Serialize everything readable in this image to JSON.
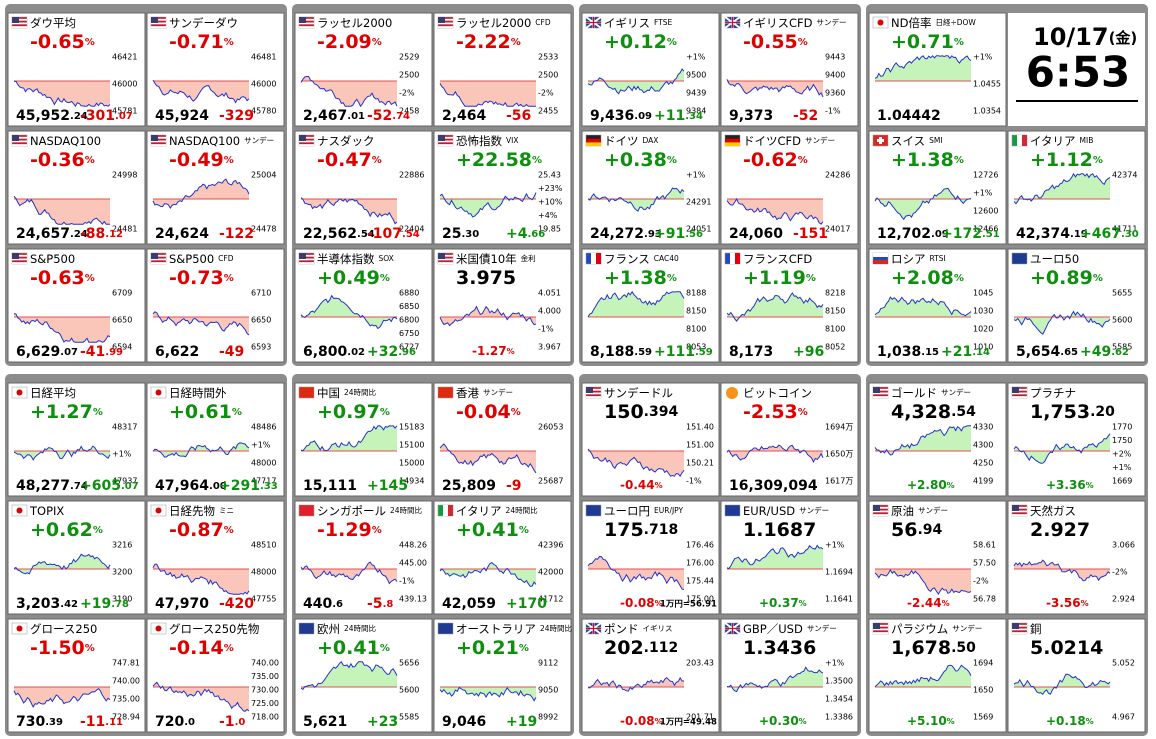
{
  "panels": [
    {
      "tiles": [
        {
          "flag": "us",
          "name": "ダウ平均",
          "pct": [
            "-0.65",
            "%"
          ],
          "price": [
            "45,952",
            ".24"
          ],
          "chg": [
            "-301",
            ".07"
          ],
          "scale": [
            "46421",
            "46000",
            "45781"
          ]
        },
        {
          "flag": "us",
          "name": "サンデーダウ",
          "pct": [
            "-0.71",
            "%"
          ],
          "price": [
            "45,924"
          ],
          "chg": [
            "-329"
          ],
          "scale": [
            "46481",
            "46000",
            "45780"
          ]
        },
        {
          "flag": "us",
          "name": "NASDAQ100",
          "pct": [
            "-0.36",
            "%"
          ],
          "price": [
            "24,657",
            ".24"
          ],
          "chg": [
            "-88",
            ".12"
          ],
          "scale": [
            "24998",
            "24481"
          ]
        },
        {
          "flag": "us",
          "name": "NASDAQ100",
          "sub": "サンデー",
          "pct": [
            "-0.49",
            "%"
          ],
          "price": [
            "24,624"
          ],
          "chg": [
            "-122"
          ],
          "scale": [
            "25004",
            "24478"
          ]
        },
        {
          "flag": "us",
          "name": "S&P500",
          "pct": [
            "-0.63",
            "%"
          ],
          "price": [
            "6,629",
            ".07"
          ],
          "chg": [
            "-41",
            ".99"
          ],
          "scale": [
            "6709",
            "6650",
            "6594"
          ]
        },
        {
          "flag": "us",
          "name": "S&P500",
          "sub": "CFD",
          "pct": [
            "-0.73",
            "%"
          ],
          "price": [
            "6,622"
          ],
          "chg": [
            "-49"
          ],
          "scale": [
            "6710",
            "6650",
            "6593"
          ]
        }
      ]
    },
    {
      "tiles": [
        {
          "flag": "us",
          "name": "ラッセル2000",
          "pct": [
            "-2.09",
            "%"
          ],
          "price": [
            "2,467",
            ".01"
          ],
          "chg": [
            "-52",
            ".74"
          ],
          "scale": [
            "2529",
            "2500",
            "-2%",
            "2458"
          ]
        },
        {
          "flag": "us",
          "name": "ラッセル2000",
          "sub": "CFD",
          "pct": [
            "-2.22",
            "%"
          ],
          "price": [
            "2,464"
          ],
          "chg": [
            "-56"
          ],
          "scale": [
            "2533",
            "2500",
            "-2%",
            "2455"
          ]
        },
        {
          "flag": "us",
          "name": "ナスダック",
          "pct": [
            "-0.47",
            "%"
          ],
          "price": [
            "22,562",
            ".54"
          ],
          "chg": [
            "-107",
            ".54"
          ],
          "scale": [
            "22886",
            "22404"
          ]
        },
        {
          "flag": "us",
          "name": "恐怖指数",
          "sub": "VIX",
          "pct": [
            "+22.58",
            "%"
          ],
          "price": [
            "25",
            ".30"
          ],
          "chg": [
            "+4",
            ".66"
          ],
          "scale": [
            "25.43",
            "+23%",
            "+10%",
            "+4%",
            "19.85"
          ]
        },
        {
          "flag": "us",
          "name": "半導体指数",
          "sub": "SOX",
          "pct": [
            "+0.49",
            "%"
          ],
          "price": [
            "6,800",
            ".02"
          ],
          "chg": [
            "+32",
            ".96"
          ],
          "scale": [
            "6880",
            "6850",
            "6800",
            "6750",
            "6727"
          ]
        },
        {
          "flag": "us",
          "name": "米国債10年",
          "sub": "金利",
          "layout": "fx",
          "pct": [
            "-1.27",
            "%"
          ],
          "price": [
            "3.975"
          ],
          "scale": [
            "4.051",
            "4.000",
            "-1%",
            "3.967"
          ]
        }
      ]
    },
    {
      "tiles": [
        {
          "flag": "gb",
          "name": "イギリス",
          "sub": "FTSE",
          "pct": [
            "+0.12",
            "%"
          ],
          "price": [
            "9,436",
            ".09"
          ],
          "chg": [
            "+11",
            ".34"
          ],
          "scale": [
            "+1%",
            "9500",
            "9439",
            "9384"
          ]
        },
        {
          "flag": "gb",
          "name": "イギリスCFD",
          "sub": "サンデー",
          "pct": [
            "-0.55",
            "%"
          ],
          "price": [
            "9,373"
          ],
          "chg": [
            "-52"
          ],
          "scale": [
            "9443",
            "9400",
            "9360",
            "-1%"
          ]
        },
        {
          "flag": "de",
          "name": "ドイツ",
          "sub": "DAX",
          "pct": [
            "+0.38",
            "%"
          ],
          "price": [
            "24,272",
            ".93"
          ],
          "chg": [
            "+91",
            ".56"
          ],
          "scale": [
            "+1%",
            "24291",
            "24051"
          ]
        },
        {
          "flag": "de",
          "name": "ドイツCFD",
          "sub": "サンデー",
          "pct": [
            "-0.62",
            "%"
          ],
          "price": [
            "24,060"
          ],
          "chg": [
            "-151"
          ],
          "scale": [
            "24286",
            "24017"
          ]
        },
        {
          "flag": "fr",
          "name": "フランス",
          "sub": "CAC40",
          "pct": [
            "+1.38",
            "%"
          ],
          "price": [
            "8,188",
            ".59"
          ],
          "chg": [
            "+111",
            ".59"
          ],
          "scale": [
            "8188",
            "8150",
            "8100",
            "8053"
          ]
        },
        {
          "flag": "fr",
          "name": "フランスCFD",
          "pct": [
            "+1.19",
            "%"
          ],
          "price": [
            "8,173"
          ],
          "chg": [
            "+96"
          ],
          "scale": [
            "8218",
            "8150",
            "8100",
            "8052"
          ]
        }
      ]
    },
    {
      "clock": {
        "date": "10/17",
        "day": "(金)",
        "time": "6:53"
      },
      "tiles": [
        {
          "flag": "jp",
          "name": "ND倍率",
          "sub": "日経÷DOW",
          "pct": [
            "+0.71",
            "%"
          ],
          "price": [
            "1.04442"
          ],
          "scale": [
            "+1%",
            "1.0455",
            "1.0354"
          ]
        },
        {
          "flag": "ch",
          "name": "スイス",
          "sub": "SMI",
          "pct": [
            "+1.38",
            "%"
          ],
          "price": [
            "12,702",
            ".09"
          ],
          "chg": [
            "+172",
            ".51"
          ],
          "scale": [
            "12726",
            "+1%",
            "12600",
            "12466"
          ]
        },
        {
          "flag": "it",
          "name": "イタリア",
          "sub": "MIB",
          "pct": [
            "+1.12",
            "%"
          ],
          "price": [
            "42,374",
            ".19"
          ],
          "chg": [
            "+467",
            ".30"
          ],
          "scale": [
            "42374",
            "41711"
          ]
        },
        {
          "flag": "ru",
          "name": "ロシア",
          "sub": "RTSI",
          "pct": [
            "+2.08",
            "%"
          ],
          "price": [
            "1,038",
            ".15"
          ],
          "chg": [
            "+21",
            ".14"
          ],
          "scale": [
            "1045",
            "1030",
            "1020",
            "1010"
          ]
        },
        {
          "flag": "eu",
          "name": "ユーロ50",
          "pct": [
            "+0.89",
            "%"
          ],
          "price": [
            "5,654",
            ".65"
          ],
          "chg": [
            "+49",
            ".62"
          ],
          "scale": [
            "5655",
            "5600",
            "5585"
          ]
        }
      ]
    },
    {
      "tiles": [
        {
          "flag": "jp",
          "name": "日経平均",
          "pct": [
            "+1.27",
            "%"
          ],
          "price": [
            "48,277",
            ".74"
          ],
          "chg": [
            "+605",
            ".07"
          ],
          "scale": [
            "48317",
            "+1%",
            "47937"
          ]
        },
        {
          "flag": "jp",
          "name": "日経時間外",
          "pct": [
            "+0.61",
            "%"
          ],
          "price": [
            "47,964",
            ".00"
          ],
          "chg": [
            "+291",
            ".33"
          ],
          "scale": [
            "48486",
            "+1%",
            "48000",
            "47717"
          ]
        },
        {
          "flag": "jp",
          "name": "TOPIX",
          "pct": [
            "+0.62",
            "%"
          ],
          "price": [
            "3,203",
            ".42"
          ],
          "chg": [
            "+19",
            ".78"
          ],
          "scale": [
            "3216",
            "3200",
            "3190"
          ]
        },
        {
          "flag": "jp",
          "name": "日経先物",
          "sub": "ミニ",
          "pct": [
            "-0.87",
            "%"
          ],
          "price": [
            "47,970"
          ],
          "chg": [
            "-420"
          ],
          "scale": [
            "48510",
            "48000",
            "47755"
          ]
        },
        {
          "flag": "jp",
          "name": "グロース250",
          "pct": [
            "-1.50",
            "%"
          ],
          "price": [
            "730",
            ".39"
          ],
          "chg": [
            "-11",
            ".11"
          ],
          "scale": [
            "747.81",
            "740.00",
            "735.00",
            "728.94"
          ]
        },
        {
          "flag": "jp",
          "name": "グロース250先物",
          "pct": [
            "-0.14",
            "%"
          ],
          "price": [
            "720",
            ".0"
          ],
          "chg": [
            "-1",
            ".0"
          ],
          "scale": [
            "740.00",
            "735.00",
            "730.00",
            "725.00",
            "718.00"
          ]
        }
      ]
    },
    {
      "tiles": [
        {
          "flag": "cn",
          "name": "中国",
          "sub": "24時間比",
          "pct": [
            "+0.97",
            "%"
          ],
          "price": [
            "15,111"
          ],
          "chg": [
            "+145"
          ],
          "scale": [
            "15183",
            "15100",
            "15000",
            "14934"
          ]
        },
        {
          "flag": "hk",
          "name": "香港",
          "sub": "サンデー",
          "pct": [
            "-0.04",
            "%"
          ],
          "price": [
            "25,809"
          ],
          "chg": [
            "-9"
          ],
          "scale": [
            "26053",
            "25687"
          ]
        },
        {
          "flag": "sg",
          "name": "シンガポール",
          "sub": "24時間比",
          "pct": [
            "-1.29",
            "%"
          ],
          "price": [
            "440",
            ".6"
          ],
          "chg": [
            "-5",
            ".8"
          ],
          "scale": [
            "448.26",
            "445.00",
            "-1%",
            "439.13"
          ]
        },
        {
          "flag": "it",
          "name": "イタリア",
          "sub": "24時間比",
          "pct": [
            "+0.41",
            "%"
          ],
          "price": [
            "42,059"
          ],
          "chg": [
            "+170"
          ],
          "scale": [
            "42396",
            "42000",
            "41712"
          ]
        },
        {
          "flag": "eu",
          "name": "欧州",
          "sub": "24時間比",
          "pct": [
            "+0.41",
            "%"
          ],
          "price": [
            "5,621"
          ],
          "chg": [
            "+23"
          ],
          "scale": [
            "5656",
            "5600",
            "5585"
          ]
        },
        {
          "flag": "au",
          "name": "オーストラリア",
          "sub": "24時間比",
          "pct": [
            "+0.21",
            "%"
          ],
          "price": [
            "9,046"
          ],
          "chg": [
            "+19"
          ],
          "scale": [
            "9112",
            "9050",
            "8992"
          ]
        }
      ]
    },
    {
      "tiles": [
        {
          "flag": "us",
          "name": "サンデードル",
          "layout": "fx",
          "pct": [
            "-0.44",
            "%"
          ],
          "price": [
            "150",
            ".394"
          ],
          "scale": [
            "151.40",
            "151.00",
            "150.21",
            "-1%"
          ]
        },
        {
          "flag": "btc",
          "name": "ビットコイン",
          "pct": [
            "-2.53",
            "%"
          ],
          "price": [
            "16,309,094"
          ],
          "scale": [
            "1694万",
            "1650万",
            "1617万"
          ]
        },
        {
          "flag": "eu",
          "name": "ユーロ円",
          "sub": "EUR/JPY",
          "layout": "fx",
          "pct": [
            "-0.08",
            "%"
          ],
          "price": [
            "175",
            ".718"
          ],
          "extra": "1万円=56.91",
          "scale": [
            "176.46",
            "176.00",
            "175.44",
            "175.00"
          ]
        },
        {
          "flag": "eu",
          "name": "EUR/USD",
          "sub": "サンデー",
          "layout": "fx",
          "pct": [
            "+0.37",
            "%"
          ],
          "price": [
            "1.1687"
          ],
          "scale": [
            "+1%",
            "1.1694",
            "1.1641"
          ]
        },
        {
          "flag": "gb",
          "name": "ポンド",
          "sub": "イギリス",
          "layout": "fx",
          "pct": [
            "-0.08",
            "%"
          ],
          "price": [
            "202",
            ".112"
          ],
          "extra": "1万円=49.48",
          "scale": [
            "203.43",
            "201.71"
          ]
        },
        {
          "flag": "gb",
          "name": "GBP／USD",
          "sub": "サンデー",
          "layout": "fx",
          "pct": [
            "+0.30",
            "%"
          ],
          "price": [
            "1.3436"
          ],
          "scale": [
            "+1%",
            "1.3500",
            "1.3454",
            "1.3386"
          ]
        }
      ]
    },
    {
      "tiles": [
        {
          "flag": "us",
          "name": "ゴールド",
          "sub": "サンデー",
          "layout": "fx",
          "pct": [
            "+2.80",
            "%"
          ],
          "price": [
            "4,328",
            ".54"
          ],
          "scale": [
            "4330",
            "4300",
            "4250",
            "4199"
          ]
        },
        {
          "flag": "us",
          "name": "プラチナ",
          "layout": "fx",
          "pct": [
            "+3.36",
            "%"
          ],
          "price": [
            "1,753",
            ".20"
          ],
          "scale": [
            "1770",
            "1750",
            "+2%",
            "+1%",
            "1669"
          ]
        },
        {
          "flag": "us",
          "name": "原油",
          "sub": "サンデー",
          "layout": "fx",
          "pct": [
            "-2.44",
            "%"
          ],
          "price": [
            "56",
            ".94"
          ],
          "scale": [
            "58.61",
            "57.50",
            "-2%",
            "56.78"
          ]
        },
        {
          "flag": "us",
          "name": "天然ガス",
          "layout": "fx",
          "pct": [
            "-3.56",
            "%"
          ],
          "price": [
            "2.927"
          ],
          "scale": [
            "3.066",
            "-2%",
            "2.924"
          ]
        },
        {
          "flag": "us",
          "name": "パラジウム",
          "sub": "サンデー",
          "layout": "fx",
          "pct": [
            "+5.10",
            "%"
          ],
          "price": [
            "1,678",
            ".50"
          ],
          "scale": [
            "1694",
            "1650",
            "1569"
          ]
        },
        {
          "flag": "us",
          "name": "銅",
          "layout": "fx",
          "pct": [
            "+0.18",
            "%"
          ],
          "price": [
            "5.0214"
          ],
          "scale": [
            "5.052",
            "4.967"
          ]
        }
      ]
    }
  ]
}
